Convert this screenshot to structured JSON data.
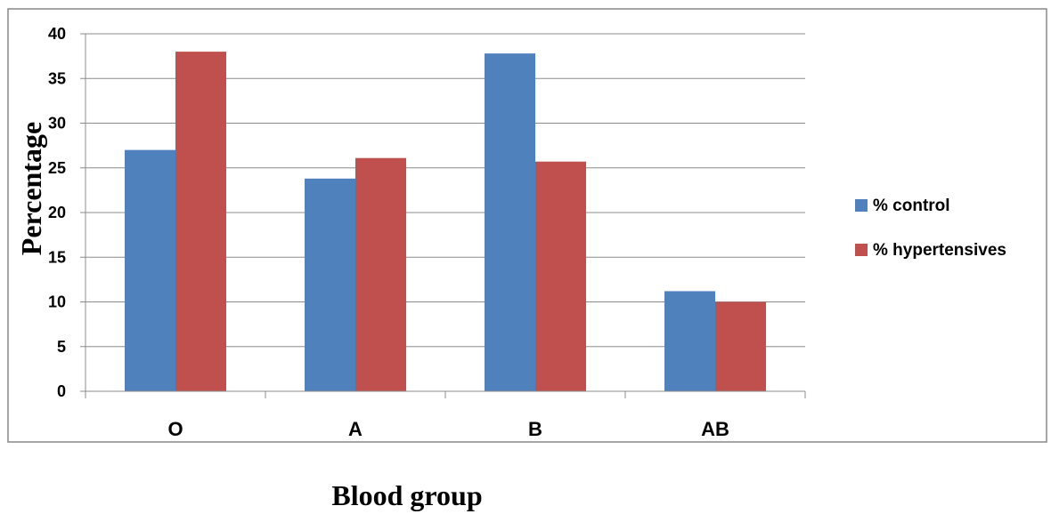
{
  "chart_data": {
    "type": "bar",
    "categories": [
      "O",
      "A",
      "B",
      "AB"
    ],
    "series": [
      {
        "name": "% control",
        "values": [
          27,
          23.8,
          37.8,
          11.2
        ],
        "color": "#4F81BD"
      },
      {
        "name": "% hypertensives",
        "values": [
          38,
          26.1,
          25.7,
          10
        ],
        "color": "#C0504D"
      }
    ],
    "xlabel": "Blood group",
    "ylabel": "Percentage",
    "ylim": [
      0,
      40
    ],
    "yticks": [
      0,
      5,
      10,
      15,
      20,
      25,
      30,
      35,
      40
    ],
    "grid": true,
    "legend_position": "right"
  }
}
